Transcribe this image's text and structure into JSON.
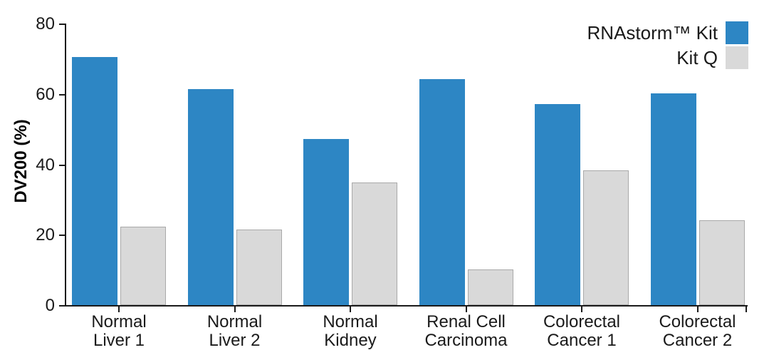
{
  "chart_data": {
    "type": "bar",
    "title": "",
    "xlabel": "",
    "ylabel": "DV200 (%)",
    "ylim": [
      0,
      80
    ],
    "yticks": [
      0,
      20,
      40,
      60,
      80
    ],
    "grid": false,
    "legend_position": "top-right",
    "categories": [
      "Normal Liver 1",
      "Normal Liver 2",
      "Normal Kidney",
      "Renal Cell Carcinoma",
      "Colorectal Cancer 1",
      "Colorectal Cancer 2"
    ],
    "category_lines": [
      [
        "Normal",
        "Liver 1"
      ],
      [
        "Normal",
        "Liver 2"
      ],
      [
        "Normal",
        "Kidney"
      ],
      [
        "Renal Cell",
        "Carcinoma"
      ],
      [
        "Colorectal",
        "Cancer 1"
      ],
      [
        "Colorectal",
        "Cancer 2"
      ]
    ],
    "series": [
      {
        "name": "RNAstorm™ Kit",
        "color": "#2d86c4",
        "values": [
          70.4,
          61.3,
          47.1,
          64.2,
          57.1,
          60.1
        ]
      },
      {
        "name": "Kit Q",
        "color": "#d9d9d9",
        "border_color": "#a9a9a9",
        "values": [
          22.3,
          21.4,
          34.9,
          10.1,
          38.2,
          24.1
        ]
      }
    ],
    "axis_color": "#1a1a1a"
  }
}
